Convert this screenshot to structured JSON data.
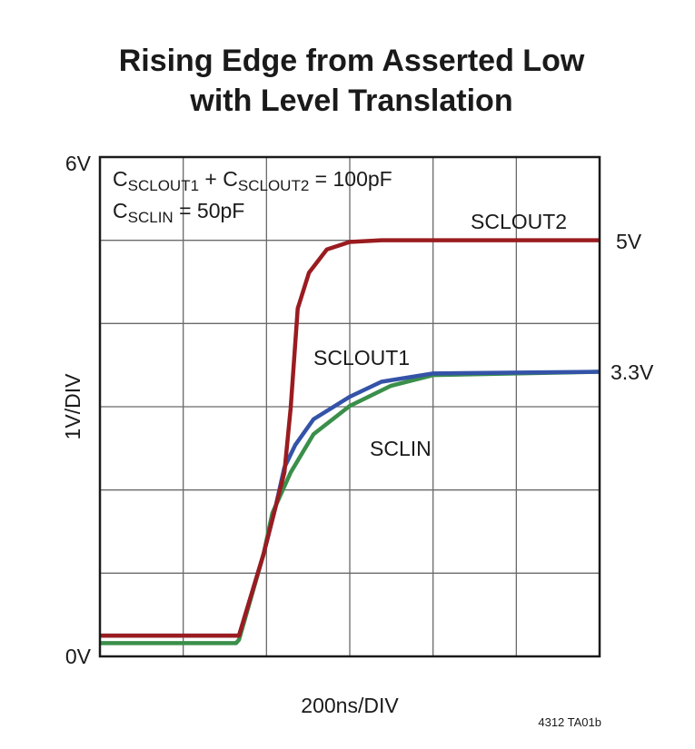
{
  "chart_data": {
    "type": "line",
    "title": [
      "Rising Edge from Asserted Low",
      "with Level Translation"
    ],
    "xlabel": "200ns/DIV",
    "ylabel": "1V/DIV",
    "xlim": [
      0,
      1200
    ],
    "ylim": [
      0,
      6
    ],
    "grid": true,
    "y_tick_labels": {
      "top": "6V",
      "bottom": "0V"
    },
    "right_labels": [
      {
        "text": "5V",
        "value": 5
      },
      {
        "text": "3.3V",
        "value": 3.4
      }
    ],
    "annotation": {
      "line1": [
        {
          "t": "C"
        },
        {
          "t": "SCLOUT1",
          "sub": true
        },
        {
          "t": " + C"
        },
        {
          "t": "SCLOUT2",
          "sub": true
        },
        {
          "t": " = 100pF"
        }
      ],
      "line2": [
        {
          "t": "C"
        },
        {
          "t": "SCLIN",
          "sub": true
        },
        {
          "t": " = 50pF"
        }
      ]
    },
    "footnote": "4312 TA01b",
    "series": [
      {
        "name": "SCLIN",
        "color": "#3a8f4a",
        "x": [
          0,
          327,
          334,
          393,
          414,
          458,
          513,
          600,
          698,
          800,
          1200
        ],
        "y": [
          0.16,
          0.16,
          0.2,
          1.23,
          1.72,
          2.21,
          2.67,
          3.01,
          3.25,
          3.38,
          3.42
        ]
      },
      {
        "name": "SCLOUT1",
        "color": "#3453a8",
        "x": [
          0,
          327,
          334,
          393,
          421,
          443,
          469,
          513,
          600,
          676,
          800,
          1200
        ],
        "y": [
          0.25,
          0.25,
          0.25,
          1.23,
          1.78,
          2.27,
          2.54,
          2.85,
          3.12,
          3.3,
          3.4,
          3.42
        ]
      },
      {
        "name": "SCLOUT2",
        "color": "#9a1c20",
        "x": [
          0,
          327,
          334,
          393,
          421,
          443,
          458,
          475,
          502,
          545,
          600,
          676,
          1200
        ],
        "y": [
          0.25,
          0.25,
          0.25,
          1.23,
          1.78,
          2.21,
          2.98,
          4.18,
          4.61,
          4.89,
          4.98,
          5.0,
          5.0
        ]
      }
    ]
  }
}
